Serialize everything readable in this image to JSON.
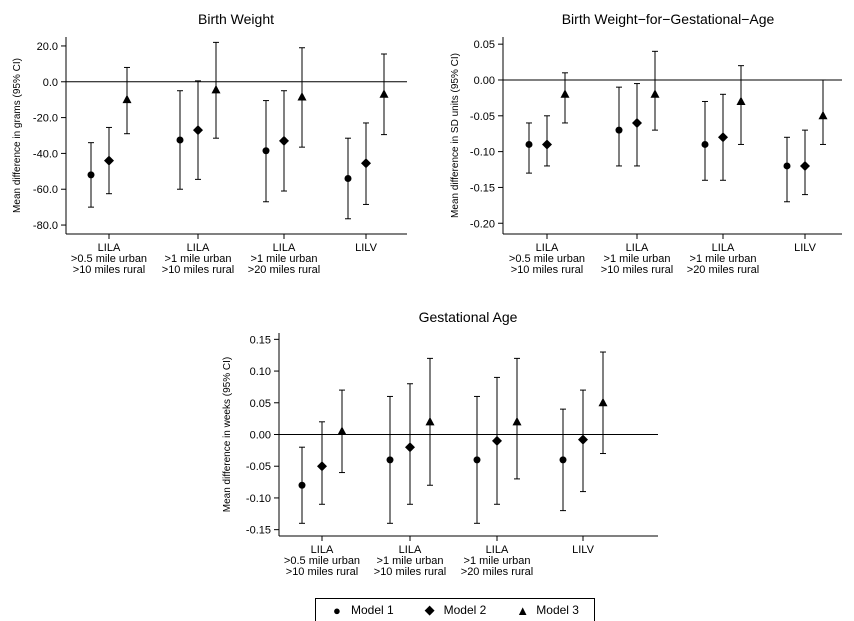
{
  "chart_data": [
    {
      "type": "scatter",
      "title": "Birth Weight",
      "ylabel": "Mean difference in grams (95% CI)",
      "ylim": [
        -85,
        25
      ],
      "yticks": [
        20,
        0,
        -20,
        -40,
        -60,
        -80
      ],
      "ytick_labels": [
        "20.0",
        "0.0",
        "-20.0",
        "-40.0",
        "-60.0",
        "-80.0"
      ],
      "groups": [
        {
          "lines": [
            "LILA",
            ">0.5 mile urban",
            ">10 miles rural"
          ]
        },
        {
          "lines": [
            "LILA",
            ">1 mile urban",
            ">10 miles rural"
          ]
        },
        {
          "lines": [
            "LILA",
            ">1 mile urban",
            ">20 miles rural"
          ]
        },
        {
          "lines": [
            "LILV"
          ]
        }
      ],
      "series": [
        {
          "name": "Model 1",
          "marker": "circle",
          "values": [
            -52,
            -32.5,
            -38.5,
            -54
          ],
          "lower": [
            -70,
            -60,
            -67,
            -76.5
          ],
          "upper": [
            -34,
            -5,
            -10.5,
            -31.5
          ]
        },
        {
          "name": "Model 2",
          "marker": "diamond",
          "values": [
            -44,
            -27,
            -33,
            -45.5
          ],
          "lower": [
            -62.5,
            -54.5,
            -61,
            -68.5
          ],
          "upper": [
            -25.5,
            0.5,
            -5,
            -23
          ]
        },
        {
          "name": "Model 3",
          "marker": "triangle",
          "values": [
            -10,
            -4.5,
            -8.5,
            -7
          ],
          "lower": [
            -29,
            -31.5,
            -36.5,
            -29.5
          ],
          "upper": [
            8,
            22,
            19,
            15.5
          ]
        }
      ]
    },
    {
      "type": "scatter",
      "title": "Birth Weight−for−Gestational−Age",
      "ylabel": "Mean difference in SD units (95% CI)",
      "ylim": [
        -0.215,
        0.06
      ],
      "yticks": [
        0.05,
        0,
        -0.05,
        -0.1,
        -0.15,
        -0.2
      ],
      "ytick_labels": [
        "0.05",
        "0.00",
        "-0.05",
        "-0.10",
        "-0.15",
        "-0.20"
      ],
      "groups": [
        {
          "lines": [
            "LILA",
            ">0.5 mile urban",
            ">10 miles rural"
          ]
        },
        {
          "lines": [
            "LILA",
            ">1 mile urban",
            ">10 miles rural"
          ]
        },
        {
          "lines": [
            "LILA",
            ">1 mile urban",
            ">20 miles rural"
          ]
        },
        {
          "lines": [
            "LILV"
          ]
        }
      ],
      "series": [
        {
          "name": "Model 1",
          "marker": "circle",
          "values": [
            -0.09,
            -0.07,
            -0.09,
            -0.12
          ],
          "lower": [
            -0.13,
            -0.12,
            -0.14,
            -0.17
          ],
          "upper": [
            -0.06,
            -0.01,
            -0.03,
            -0.08
          ]
        },
        {
          "name": "Model 2",
          "marker": "diamond",
          "values": [
            -0.09,
            -0.06,
            -0.08,
            -0.12
          ],
          "lower": [
            -0.12,
            -0.12,
            -0.14,
            -0.16
          ],
          "upper": [
            -0.05,
            -0.005,
            -0.02,
            -0.07
          ]
        },
        {
          "name": "Model 3",
          "marker": "triangle",
          "values": [
            -0.02,
            -0.02,
            -0.03,
            -0.05
          ],
          "lower": [
            -0.06,
            -0.07,
            -0.09,
            -0.09
          ],
          "upper": [
            0.01,
            0.04,
            0.02,
            0.0
          ]
        }
      ]
    },
    {
      "type": "scatter",
      "title": "Gestational Age",
      "ylabel": "Mean difference in weeks (95% CI)",
      "ylim": [
        -0.16,
        0.16
      ],
      "yticks": [
        0.15,
        0.1,
        0.05,
        0,
        -0.05,
        -0.1,
        -0.15
      ],
      "ytick_labels": [
        "0.15",
        "0.10",
        "0.05",
        "0.00",
        "-0.05",
        "-0.10",
        "-0.15"
      ],
      "groups": [
        {
          "lines": [
            "LILA",
            ">0.5 mile urban",
            ">10 miles rural"
          ]
        },
        {
          "lines": [
            "LILA",
            ">1 mile urban",
            ">10 miles rural"
          ]
        },
        {
          "lines": [
            "LILA",
            ">1 mile urban",
            ">20 miles rural"
          ]
        },
        {
          "lines": [
            "LILV"
          ]
        }
      ],
      "series": [
        {
          "name": "Model 1",
          "marker": "circle",
          "values": [
            -0.08,
            -0.04,
            -0.04,
            -0.04
          ],
          "lower": [
            -0.14,
            -0.14,
            -0.14,
            -0.12
          ],
          "upper": [
            -0.02,
            0.06,
            0.06,
            0.04
          ]
        },
        {
          "name": "Model 2",
          "marker": "diamond",
          "values": [
            -0.05,
            -0.02,
            -0.01,
            -0.008
          ],
          "lower": [
            -0.11,
            -0.11,
            -0.11,
            -0.09
          ],
          "upper": [
            0.02,
            0.08,
            0.09,
            0.07
          ]
        },
        {
          "name": "Model 3",
          "marker": "triangle",
          "values": [
            0.005,
            0.02,
            0.02,
            0.05
          ],
          "lower": [
            -0.06,
            -0.08,
            -0.07,
            -0.03
          ],
          "upper": [
            0.07,
            0.12,
            0.12,
            0.13
          ]
        }
      ]
    }
  ],
  "legend": {
    "entries": [
      {
        "label": "Model 1",
        "marker": "●"
      },
      {
        "label": "Model 2",
        "marker": "◆"
      },
      {
        "label": "Model 3",
        "marker": "▲"
      }
    ]
  }
}
